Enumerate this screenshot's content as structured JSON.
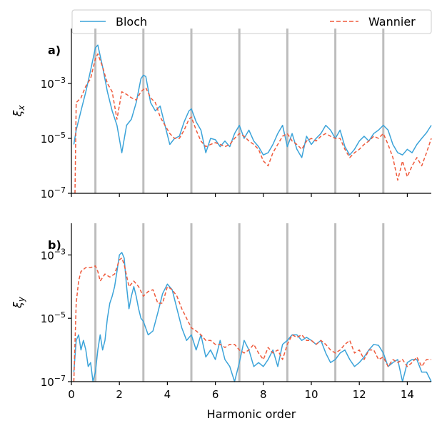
{
  "chart_data": {
    "type": "line",
    "shared_xlabel": "Harmonic order",
    "xlim": [
      0,
      15
    ],
    "x_ticks": [
      0,
      2,
      4,
      6,
      8,
      10,
      12,
      14
    ],
    "log_y": true,
    "legend": {
      "placement": "top",
      "entries": [
        "Bloch",
        "Wannier"
      ]
    },
    "colors": {
      "Bloch": "#3ba3d9",
      "Wannier": "#ef5a3c",
      "odd_harmonic_lines": "#bdbdbd"
    },
    "odd_harmonic_lines": [
      1,
      3,
      5,
      7,
      9,
      11,
      13
    ],
    "panels": [
      {
        "label": "a)",
        "ylabel": "ξx",
        "ylim": [
          1e-07,
          0.1
        ],
        "y_ticks": [
          {
            "value": 0.001,
            "mantissa": "10",
            "exp": "−3"
          },
          {
            "value": 1e-05,
            "mantissa": "10",
            "exp": "−5"
          },
          {
            "value": 1e-07,
            "mantissa": "10",
            "exp": "−7"
          }
        ],
        "series": [
          {
            "name": "Bloch",
            "x": [
              0.1,
              0.2,
              0.4,
              0.6,
              0.8,
              1.0,
              1.1,
              1.3,
              1.5,
              1.7,
              1.9,
              2.1,
              2.3,
              2.5,
              2.7,
              2.9,
              3.0,
              3.1,
              3.3,
              3.5,
              3.7,
              3.9,
              4.1,
              4.3,
              4.5,
              4.7,
              4.9,
              5.0,
              5.2,
              5.4,
              5.6,
              5.8,
              6.0,
              6.2,
              6.4,
              6.6,
              6.8,
              7.0,
              7.2,
              7.4,
              7.6,
              7.8,
              8.0,
              8.2,
              8.4,
              8.6,
              8.8,
              9.0,
              9.2,
              9.4,
              9.6,
              9.8,
              10.0,
              10.2,
              10.4,
              10.6,
              10.8,
              11.0,
              11.2,
              11.4,
              11.6,
              11.8,
              12.0,
              12.2,
              12.4,
              12.6,
              12.8,
              13.0,
              13.2,
              13.4,
              13.6,
              13.8,
              14.0,
              14.2,
              14.4,
              14.6,
              14.8,
              15.0
            ],
            "y": [
              6e-06,
              2e-05,
              0.0001,
              0.0005,
              0.003,
              0.02,
              0.025,
              0.004,
              0.0005,
              0.0001,
              3e-05,
              3e-06,
              3e-05,
              5e-05,
              0.0002,
              0.0015,
              0.002,
              0.0018,
              0.0002,
              0.0001,
              0.00015,
              3e-05,
              6e-06,
              1e-05,
              1.2e-05,
              4e-05,
              0.0001,
              0.00012,
              4e-05,
              2e-05,
              3e-06,
              1e-05,
              9e-06,
              5e-06,
              8e-06,
              5e-06,
              1.5e-05,
              3e-05,
              1e-05,
              2e-05,
              8e-06,
              5e-06,
              2.5e-06,
              3e-06,
              6e-06,
              1.5e-05,
              3e-05,
              5e-06,
              1.5e-05,
              4e-06,
              2e-06,
              1.2e-05,
              6e-06,
              1e-05,
              1.5e-05,
              3e-05,
              2e-05,
              1e-05,
              2e-05,
              5e-06,
              2.5e-06,
              4e-06,
              8e-06,
              1.2e-05,
              8e-06,
              1.5e-05,
              2e-05,
              3e-05,
              2e-05,
              6e-06,
              3e-06,
              2.5e-06,
              4e-06,
              3e-06,
              6e-06,
              1e-05,
              1.6e-05,
              3e-05
            ]
          },
          {
            "name": "Wannier",
            "x": [
              0.15,
              0.2,
              0.4,
              0.6,
              0.8,
              1.0,
              1.1,
              1.3,
              1.5,
              1.7,
              1.9,
              2.1,
              2.3,
              2.5,
              2.7,
              2.9,
              3.0,
              3.1,
              3.3,
              3.5,
              3.7,
              3.9,
              4.1,
              4.3,
              4.5,
              4.7,
              4.9,
              5.0,
              5.2,
              5.4,
              5.6,
              5.8,
              6.0,
              6.2,
              6.4,
              6.6,
              6.8,
              7.0,
              7.2,
              7.4,
              7.6,
              7.8,
              8.0,
              8.2,
              8.4,
              8.6,
              8.8,
              9.0,
              9.2,
              9.4,
              9.6,
              9.8,
              10.0,
              10.2,
              10.4,
              10.6,
              10.8,
              11.0,
              11.2,
              11.4,
              11.6,
              11.8,
              12.0,
              12.2,
              12.4,
              12.6,
              12.8,
              13.0,
              13.2,
              13.4,
              13.6,
              13.8,
              14.0,
              14.2,
              14.4,
              14.6,
              14.8,
              15.0
            ],
            "y": [
              1e-07,
              0.0002,
              0.0003,
              0.0008,
              0.0015,
              0.008,
              0.012,
              0.004,
              0.001,
              0.0005,
              5e-05,
              0.0005,
              0.0004,
              0.0003,
              0.00025,
              0.0005,
              0.0006,
              0.0007,
              0.0003,
              0.0002,
              6e-05,
              3e-05,
              1.5e-05,
              1e-05,
              1e-05,
              2e-05,
              5e-05,
              6e-05,
              2e-05,
              8e-06,
              5e-06,
              6e-06,
              7e-06,
              6e-06,
              5e-06,
              6e-06,
              1e-05,
              1.5e-05,
              1.2e-05,
              8e-06,
              6e-06,
              4e-06,
              1.5e-06,
              1e-06,
              3e-06,
              6e-06,
              1.2e-05,
              1.5e-05,
              8e-06,
              6e-06,
              4e-06,
              8e-06,
              1e-05,
              8e-06,
              1.2e-05,
              1.5e-05,
              1.2e-05,
              1e-05,
              1e-05,
              4e-06,
              2e-06,
              3e-06,
              4e-06,
              6e-06,
              8e-06,
              1.2e-05,
              1e-05,
              1.5e-05,
              6e-06,
              2e-06,
              3e-07,
              1.5e-06,
              4e-07,
              1e-06,
              2e-06,
              1e-06,
              3e-06,
              1e-05
            ]
          }
        ]
      },
      {
        "label": "b)",
        "ylabel": "ξy",
        "ylim": [
          1e-07,
          0.01
        ],
        "y_ticks": [
          {
            "value": 0.001,
            "mantissa": "10",
            "exp": "−3"
          },
          {
            "value": 1e-05,
            "mantissa": "10",
            "exp": "−5"
          },
          {
            "value": 1e-07,
            "mantissa": "10",
            "exp": "−7"
          }
        ],
        "series": [
          {
            "name": "Bloch",
            "x": [
              0.1,
              0.2,
              0.3,
              0.4,
              0.5,
              0.6,
              0.7,
              0.8,
              0.9,
              1.0,
              1.1,
              1.2,
              1.3,
              1.4,
              1.5,
              1.6,
              1.7,
              1.8,
              1.9,
              2.0,
              2.1,
              2.2,
              2.3,
              2.4,
              2.5,
              2.6,
              2.7,
              2.8,
              2.9,
              3.0,
              3.2,
              3.4,
              3.6,
              3.8,
              4.0,
              4.2,
              4.4,
              4.6,
              4.8,
              5.0,
              5.2,
              5.4,
              5.6,
              5.8,
              6.0,
              6.2,
              6.4,
              6.6,
              6.8,
              7.0,
              7.2,
              7.4,
              7.6,
              7.8,
              8.0,
              8.2,
              8.4,
              8.6,
              8.8,
              9.0,
              9.2,
              9.4,
              9.6,
              9.8,
              10.0,
              10.2,
              10.4,
              10.6,
              10.8,
              11.0,
              11.2,
              11.4,
              11.6,
              11.8,
              12.0,
              12.2,
              12.4,
              12.6,
              12.8,
              13.0,
              13.2,
              13.4,
              13.6,
              13.8,
              14.0,
              14.2,
              14.4,
              14.6,
              14.8,
              15.0
            ],
            "y": [
              2e-07,
              2e-06,
              3e-06,
              1e-06,
              2e-06,
              1e-06,
              3e-07,
              4e-07,
              1e-07,
              2e-07,
              1e-06,
              3e-06,
              1e-06,
              2e-06,
              1e-05,
              3e-05,
              5e-05,
              0.0001,
              0.0003,
              0.001,
              0.0012,
              0.0008,
              0.0001,
              2e-05,
              5e-05,
              0.0001,
              5e-05,
              2e-05,
              1e-05,
              8e-06,
              3e-06,
              4e-06,
              1.5e-05,
              6e-05,
              0.00012,
              8e-05,
              2e-05,
              5e-06,
              2e-06,
              3e-06,
              1e-06,
              3e-06,
              6e-07,
              1e-06,
              5e-07,
              2e-06,
              5e-07,
              3e-07,
              1e-07,
              4e-07,
              2e-06,
              1e-06,
              3e-07,
              4e-07,
              3e-07,
              5e-07,
              1e-06,
              3e-07,
              1.5e-06,
              2e-06,
              3e-06,
              3e-06,
              2e-06,
              2.5e-06,
              2e-06,
              1.5e-06,
              2e-06,
              8e-07,
              4e-07,
              5e-07,
              8e-07,
              1e-06,
              5e-07,
              3e-07,
              4e-07,
              6e-07,
              1e-06,
              1.5e-06,
              1.4e-06,
              8e-07,
              3e-07,
              4e-07,
              5e-07,
              1e-07,
              4e-07,
              5e-07,
              5e-07,
              2e-07,
              2e-07,
              1e-07
            ]
          },
          {
            "name": "Wannier",
            "x": [
              0.1,
              0.2,
              0.3,
              0.4,
              0.6,
              0.8,
              1.0,
              1.1,
              1.2,
              1.4,
              1.6,
              1.8,
              2.0,
              2.1,
              2.2,
              2.4,
              2.6,
              2.8,
              3.0,
              3.2,
              3.4,
              3.6,
              3.8,
              4.0,
              4.2,
              4.4,
              4.6,
              4.8,
              5.0,
              5.2,
              5.4,
              5.6,
              5.8,
              6.0,
              6.2,
              6.4,
              6.6,
              6.8,
              7.0,
              7.2,
              7.4,
              7.6,
              7.8,
              8.0,
              8.2,
              8.4,
              8.6,
              8.8,
              9.0,
              9.2,
              9.4,
              9.6,
              9.8,
              10.0,
              10.2,
              10.4,
              10.6,
              10.8,
              11.0,
              11.2,
              11.4,
              11.6,
              11.8,
              12.0,
              12.2,
              12.4,
              12.6,
              12.8,
              13.0,
              13.2,
              13.4,
              13.6,
              13.8,
              14.0,
              14.2,
              14.4,
              14.6,
              14.8,
              15.0
            ],
            "y": [
              1e-07,
              3e-05,
              0.00015,
              0.0003,
              0.0004,
              0.0004,
              0.00045,
              0.0003,
              0.00015,
              0.00025,
              0.0002,
              0.00025,
              0.0007,
              0.0008,
              0.0005,
              0.0001,
              0.00015,
              0.0001,
              5e-05,
              7e-05,
              8e-05,
              3e-05,
              3e-05,
              0.0001,
              8e-05,
              5e-05,
              2e-05,
              1e-05,
              5e-06,
              4e-06,
              3e-06,
              2e-06,
              2e-06,
              1.5e-06,
              1.5e-06,
              1.2e-06,
              1.5e-06,
              1.5e-06,
              1e-06,
              8e-07,
              1e-06,
              1.5e-06,
              8e-07,
              5e-07,
              1.2e-06,
              8e-07,
              1e-06,
              5e-07,
              1.5e-06,
              3e-06,
              2.5e-06,
              3e-06,
              2e-06,
              2e-06,
              1.5e-06,
              2e-06,
              1.5e-06,
              1e-06,
              8e-07,
              1e-06,
              1.5e-06,
              2e-06,
              8e-07,
              1e-06,
              5e-07,
              1e-06,
              1e-06,
              5e-07,
              6e-07,
              3e-07,
              5e-07,
              4e-07,
              5e-07,
              3e-07,
              4e-07,
              6e-07,
              3e-07,
              5e-07,
              5e-07
            ]
          }
        ]
      }
    ]
  }
}
